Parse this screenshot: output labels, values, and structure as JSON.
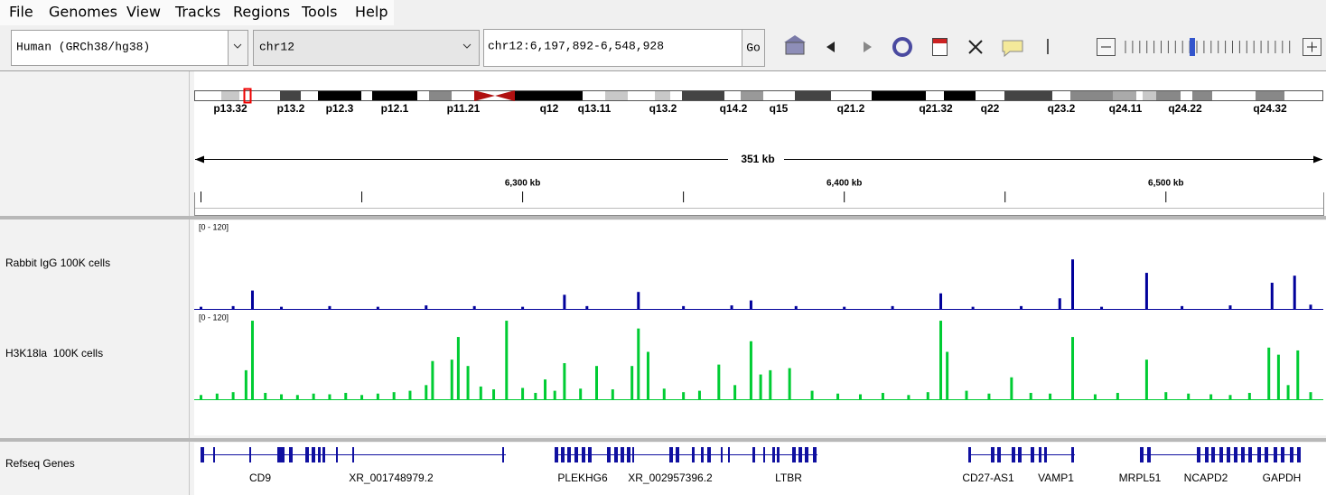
{
  "menu": [
    "File",
    "Genomes",
    "View",
    "Tracks",
    "Regions",
    "Tools",
    "Help"
  ],
  "toolbar": {
    "genome": "Human (GRCh38/hg38)",
    "chromosome": "chr12",
    "locus": "chr12:6,197,892-6,548,928",
    "go": "Go"
  },
  "cytobands": [
    "p13.32",
    "p13.2",
    "p12.3",
    "p12.1",
    "p11.21",
    "q12",
    "q13.11",
    "q13.2",
    "q14.2",
    "q15",
    "q21.2",
    "q21.32",
    "q22",
    "q23.2",
    "q24.11",
    "q24.22",
    "q24.32"
  ],
  "ruler": {
    "span_label": "351 kb",
    "xlim": [
      6197.892,
      6548.928
    ],
    "ticks": [
      {
        "value": 6300,
        "label": "6,300 kb"
      },
      {
        "value": 6400,
        "label": "6,400 kb"
      },
      {
        "value": 6500,
        "label": "6,500 kb"
      }
    ],
    "minor_ticks": [
      6200,
      6250,
      6350,
      6450
    ]
  },
  "tracks": [
    {
      "name": "Rabbit IgG 100K cells",
      "range_label": "[0 - 120]",
      "ylim": [
        0,
        120
      ],
      "color": "#00009b",
      "x": [
        6200,
        6210,
        6216,
        6225,
        6240,
        6255,
        6270,
        6285,
        6300,
        6313,
        6320,
        6336,
        6350,
        6365,
        6371,
        6385,
        6400,
        6415,
        6430,
        6440,
        6455,
        6467,
        6471,
        6480,
        6494,
        6505,
        6520,
        6533,
        6540,
        6545
      ],
      "values": [
        3,
        4,
        26,
        3,
        4,
        3,
        5,
        4,
        3,
        20,
        4,
        24,
        4,
        5,
        12,
        4,
        3,
        4,
        22,
        3,
        4,
        15,
        70,
        3,
        51,
        4,
        5,
        37,
        47,
        6
      ]
    },
    {
      "name": "H3K18la  100K cells",
      "range_label": "[0 - 120]",
      "ylim": [
        0,
        120
      ],
      "color": "#00cc33",
      "x": [
        6200,
        6205,
        6210,
        6214,
        6216,
        6220,
        6225,
        6230,
        6235,
        6240,
        6245,
        6250,
        6255,
        6260,
        6265,
        6270,
        6272,
        6278,
        6280,
        6283,
        6287,
        6291,
        6295,
        6300,
        6304,
        6307,
        6310,
        6313,
        6318,
        6323,
        6328,
        6334,
        6336,
        6339,
        6344,
        6350,
        6355,
        6361,
        6366,
        6371,
        6374,
        6377,
        6383,
        6390,
        6398,
        6405,
        6412,
        6420,
        6426,
        6430,
        6432,
        6438,
        6445,
        6452,
        6458,
        6464,
        6471,
        6478,
        6485,
        6494,
        6500,
        6507,
        6514,
        6520,
        6526,
        6532,
        6535,
        6538,
        6541,
        6545
      ],
      "values": [
        6,
        8,
        10,
        41,
        111,
        9,
        7,
        6,
        8,
        7,
        9,
        6,
        8,
        10,
        12,
        20,
        54,
        56,
        88,
        47,
        18,
        14,
        111,
        16,
        9,
        28,
        12,
        51,
        15,
        47,
        14,
        47,
        100,
        67,
        15,
        10,
        12,
        49,
        20,
        82,
        35,
        41,
        44,
        12,
        8,
        7,
        9,
        6,
        10,
        111,
        67,
        12,
        8,
        31,
        9,
        8,
        88,
        7,
        9,
        56,
        10,
        8,
        7,
        6,
        9,
        73,
        63,
        20,
        69,
        10
      ]
    }
  ],
  "genes": {
    "track_name": "Refseq Genes",
    "labels": [
      "CD9",
      "XR_001748979.2",
      "PLEKHG6",
      "XR_002957396.2",
      "LTBR",
      "CD27-AS1",
      "VAMP1",
      "MRPL51",
      "NCAPD2",
      "GAPDH"
    ]
  }
}
